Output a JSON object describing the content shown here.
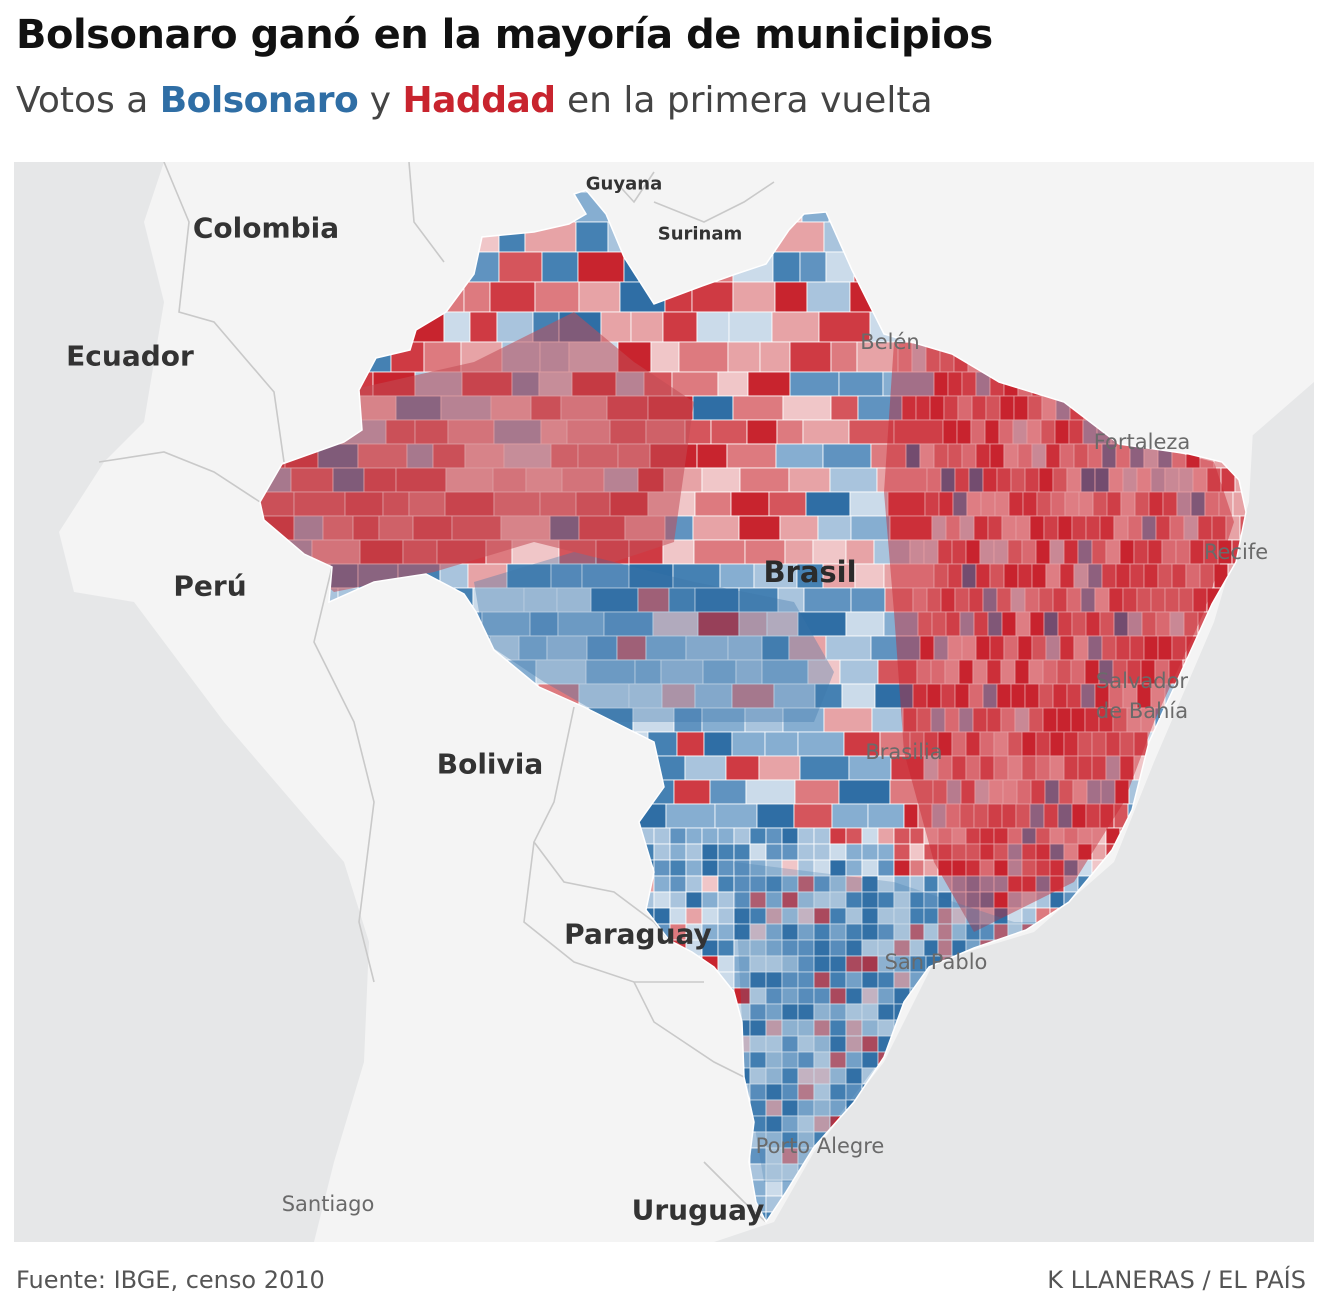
{
  "header": {
    "title": "Bolsonaro ganó en la mayoría de municipios",
    "subtitle_parts": [
      "Votos a ",
      "Bolsonaro",
      " y ",
      "Haddad",
      " en la primera vuelta"
    ]
  },
  "colors": {
    "bolsonaro": "#2f6ea5",
    "haddad": "#c8242e",
    "land": "#f4f4f4",
    "ocean": "#e6e7e8"
  },
  "countries": {
    "colombia": "Colombia",
    "ecuador": "Ecuador",
    "peru": "Perú",
    "bolivia": "Bolivia",
    "paraguay": "Paraguay",
    "uruguay": "Uruguay",
    "guyana": "Guyana",
    "surinam": "Surinam",
    "brasil": "Brasil"
  },
  "cities": {
    "belen": "Belén",
    "fortaleza": "Fortaleza",
    "recife": "Recife",
    "salvador": "Salvador\nde Bahía",
    "brasilia": "Brasilia",
    "san_pablo": "San Pablo",
    "porto_alegre": "Porto Alegre",
    "santiago": "Santiago"
  },
  "footer": {
    "source": "Fuente: IBGE, censo 2010",
    "credit": "K LLANERAS / EL PAÍS"
  }
}
